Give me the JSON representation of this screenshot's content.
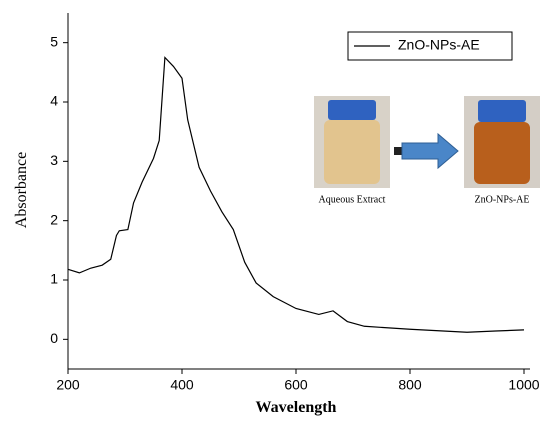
{
  "chart_data": {
    "type": "line",
    "x_label": "Wavelength",
    "y_label": "Absorbance",
    "x": [
      200,
      220,
      240,
      260,
      275,
      285,
      290,
      305,
      315,
      330,
      350,
      360,
      370,
      385,
      400,
      410,
      430,
      450,
      470,
      490,
      510,
      530,
      560,
      600,
      640,
      665,
      690,
      720,
      800,
      900,
      950,
      1000
    ],
    "series": [
      {
        "name": "ZnO-NPs-AE",
        "color": "#000000",
        "values": [
          1.18,
          1.12,
          1.2,
          1.25,
          1.35,
          1.75,
          1.83,
          1.85,
          2.3,
          2.65,
          3.05,
          3.35,
          4.75,
          4.6,
          4.4,
          3.7,
          2.9,
          2.5,
          2.15,
          1.85,
          1.3,
          0.95,
          0.72,
          0.52,
          0.42,
          0.48,
          0.3,
          0.22,
          0.17,
          0.12,
          0.14,
          0.16
        ]
      }
    ],
    "xlim": [
      200,
      1000
    ],
    "xticks": [
      200,
      400,
      600,
      800,
      1000
    ],
    "ylim": [
      -0.5,
      5.5
    ],
    "yticks": [
      0,
      1,
      2,
      3,
      4,
      5
    ],
    "legend": "upper right",
    "annotations": [
      "Aqueous Extract",
      "ZnO-NPs-AE"
    ]
  }
}
